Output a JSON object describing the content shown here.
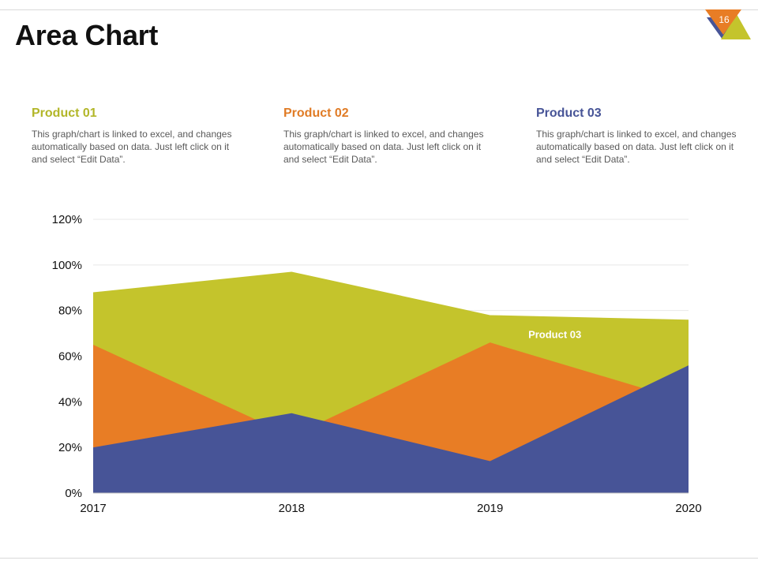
{
  "page": {
    "title": "Area Chart",
    "slide_number": "16"
  },
  "colors": {
    "product01": "#c4c42c",
    "product02": "#e87d25",
    "product03": "#475497",
    "grid": "#e8e8e8",
    "text_gray": "#595959"
  },
  "products": [
    {
      "title": "Product 01",
      "color": "#b2b628",
      "description": "This graph/chart is linked to excel, and changes automatically based on data. Just left click on it and select “Edit Data”."
    },
    {
      "title": "Product 02",
      "color": "#e07b25",
      "description": "This graph/chart is linked to excel, and changes automatically based on data. Just left click on it and select “Edit Data”."
    },
    {
      "title": "Product 03",
      "color": "#475497",
      "description": "This graph/chart is linked to excel, and changes automatically based on data. Just left click on it and select “Edit Data”."
    }
  ],
  "chart_data": {
    "type": "area",
    "categories": [
      "2017",
      "2018",
      "2019",
      "2020"
    ],
    "yticks": [
      "0%",
      "20%",
      "40%",
      "60%",
      "80%",
      "100%",
      "120%"
    ],
    "ylim": [
      0,
      120
    ],
    "grid": true,
    "series": [
      {
        "name": "Product 01",
        "color": "#c4c42c",
        "values": [
          88,
          97,
          78,
          76
        ]
      },
      {
        "name": "Product 02",
        "color": "#e87d25",
        "values": [
          65,
          25,
          66,
          40
        ]
      },
      {
        "name": "Product 03",
        "color": "#475497",
        "values": [
          20,
          35,
          14,
          56
        ]
      }
    ],
    "annotations": [
      {
        "text": "Product 03",
        "category": "2019",
        "value": 68
      }
    ]
  }
}
